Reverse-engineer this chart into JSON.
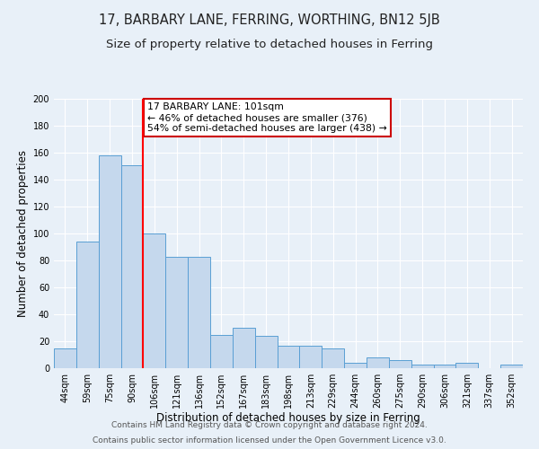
{
  "title": "17, BARBARY LANE, FERRING, WORTHING, BN12 5JB",
  "subtitle": "Size of property relative to detached houses in Ferring",
  "xlabel": "Distribution of detached houses by size in Ferring",
  "ylabel": "Number of detached properties",
  "categories": [
    "44sqm",
    "59sqm",
    "75sqm",
    "90sqm",
    "106sqm",
    "121sqm",
    "136sqm",
    "152sqm",
    "167sqm",
    "183sqm",
    "198sqm",
    "213sqm",
    "229sqm",
    "244sqm",
    "260sqm",
    "275sqm",
    "290sqm",
    "306sqm",
    "321sqm",
    "337sqm",
    "352sqm"
  ],
  "values": [
    15,
    94,
    158,
    151,
    100,
    83,
    83,
    25,
    30,
    24,
    17,
    17,
    15,
    4,
    8,
    6,
    3,
    3,
    4,
    0,
    3
  ],
  "bar_color": "#c5d8ed",
  "bar_edge_color": "#5a9fd4",
  "red_line_index": 4,
  "annotation_title": "17 BARBARY LANE: 101sqm",
  "annotation_line1": "← 46% of detached houses are smaller (376)",
  "annotation_line2": "54% of semi-detached houses are larger (438) →",
  "annotation_box_color": "#ffffff",
  "annotation_box_edge": "#cc0000",
  "ylim": [
    0,
    200
  ],
  "yticks": [
    0,
    20,
    40,
    60,
    80,
    100,
    120,
    140,
    160,
    180,
    200
  ],
  "footer1": "Contains HM Land Registry data © Crown copyright and database right 2024.",
  "footer2": "Contains public sector information licensed under the Open Government Licence v3.0.",
  "background_color": "#e8f0f8",
  "grid_color": "#ffffff",
  "title_fontsize": 10.5,
  "subtitle_fontsize": 9.5,
  "axis_label_fontsize": 8.5,
  "tick_fontsize": 7,
  "footer_fontsize": 6.5
}
